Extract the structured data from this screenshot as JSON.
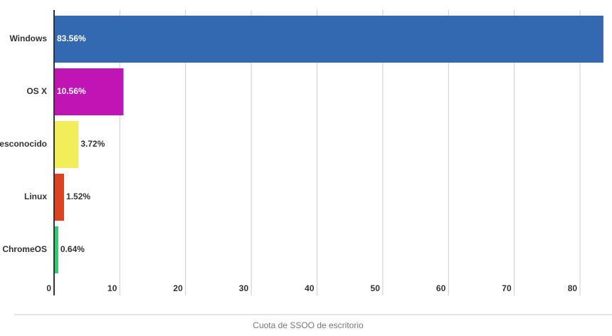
{
  "chart_data": {
    "type": "bar",
    "orientation": "horizontal",
    "x_label": "Cuota de SSOO de escritorio",
    "categories": [
      "Windows",
      "OS X",
      "Desconocido",
      "Linux",
      "ChromeOS"
    ],
    "values": [
      83.56,
      10.56,
      3.72,
      1.52,
      0.64
    ],
    "value_labels": [
      "83.56%",
      "10.56%",
      "3.72%",
      "1.52%",
      "0.64%"
    ],
    "colors": [
      "#3369b0",
      "#c014b5",
      "#f2ee5a",
      "#dd4222",
      "#2ecc71"
    ],
    "xlim": [
      0,
      84
    ],
    "xticks": [
      0,
      10,
      20,
      30,
      40,
      50,
      60,
      70,
      80
    ],
    "grid": true
  }
}
